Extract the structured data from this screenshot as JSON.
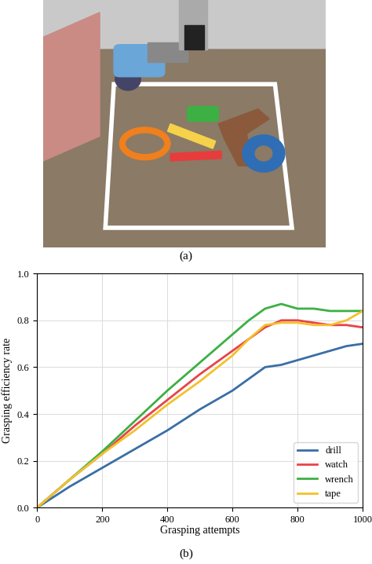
{
  "scene": {
    "label": "(a)"
  },
  "chart_data": {
    "type": "line",
    "label": "(b)",
    "x_label": "Grasping attempts",
    "y_label": "Grasping efficiency rate",
    "x": [
      0,
      100,
      200,
      300,
      400,
      500,
      600,
      650,
      700,
      750,
      800,
      850,
      900,
      950,
      1000
    ],
    "series": [
      {
        "name": "drill",
        "color": "#3a6ea5",
        "values": [
          0,
          0.09,
          0.17,
          0.25,
          0.33,
          0.42,
          0.5,
          0.55,
          0.6,
          0.61,
          0.63,
          0.65,
          0.67,
          0.69,
          0.7
        ]
      },
      {
        "name": "watch",
        "color": "#e8434a",
        "values": [
          0,
          0.12,
          0.23,
          0.35,
          0.46,
          0.57,
          0.67,
          0.72,
          0.77,
          0.8,
          0.8,
          0.79,
          0.78,
          0.78,
          0.77
        ]
      },
      {
        "name": "wrench",
        "color": "#3cb043",
        "values": [
          0,
          0.12,
          0.24,
          0.37,
          0.5,
          0.62,
          0.74,
          0.8,
          0.85,
          0.87,
          0.85,
          0.85,
          0.84,
          0.84,
          0.84
        ]
      },
      {
        "name": "tape",
        "color": "#f2c12e",
        "values": [
          0,
          0.12,
          0.23,
          0.33,
          0.44,
          0.54,
          0.65,
          0.72,
          0.78,
          0.79,
          0.79,
          0.78,
          0.78,
          0.8,
          0.84
        ]
      }
    ],
    "xlim": [
      0,
      1000
    ],
    "xticks": [
      0,
      200,
      400,
      600,
      800,
      1000
    ],
    "ylim": [
      0,
      1
    ],
    "yticks": [
      {
        "value": 0,
        "label": "0.0"
      },
      0.2,
      0.4,
      0.6,
      0.8,
      {
        "value": 1,
        "label": "1.0"
      }
    ],
    "grid": true,
    "legend": "lower right",
    "line_style": "solid"
  }
}
